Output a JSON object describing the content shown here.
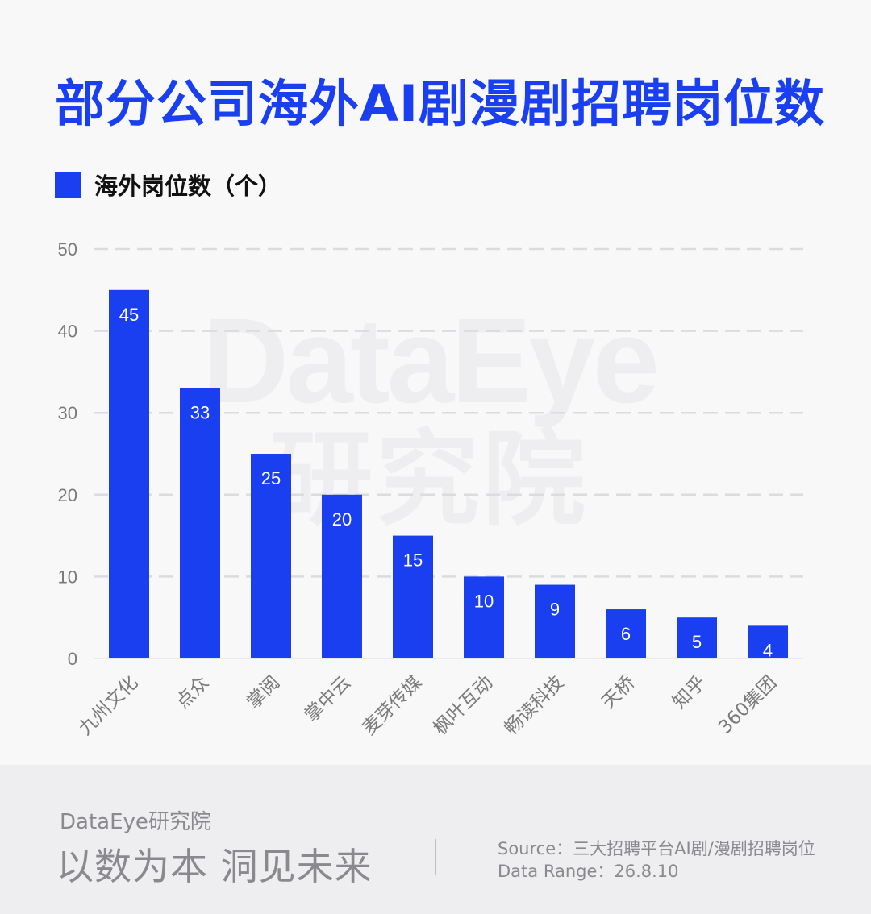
{
  "title": "部分公司海外AI剧漫剧招聘岗位数",
  "colors": {
    "accent": "#1a3ff0",
    "grid": "#dcdcdf",
    "axis_text": "#7a7a7a",
    "bar_label": "#ffffff"
  },
  "watermark": {
    "line1": "DataEye",
    "line2": "研究院"
  },
  "chart_data": {
    "type": "bar",
    "categories": [
      "九州文化",
      "点众",
      "掌阅",
      "掌中云",
      "麦芽传媒",
      "枫叶互动",
      "畅读科技",
      "天桥",
      "知乎",
      "360集团"
    ],
    "series": [
      {
        "name": "海外岗位数（个）",
        "values": [
          45,
          33,
          25,
          20,
          15,
          10,
          9,
          6,
          5,
          4
        ]
      }
    ],
    "ylim": [
      0,
      50
    ],
    "yticks": [
      0,
      10,
      20,
      30,
      40,
      50
    ],
    "grid": true,
    "legend_position": "top-left",
    "data_labels": true
  },
  "footer": {
    "brand": "DataEye研究院",
    "slogan": "以数为本 洞见未来",
    "source": "Source：三大招聘平台AI剧/漫剧招聘岗位",
    "data_range": "Data Range：26.8.10"
  }
}
